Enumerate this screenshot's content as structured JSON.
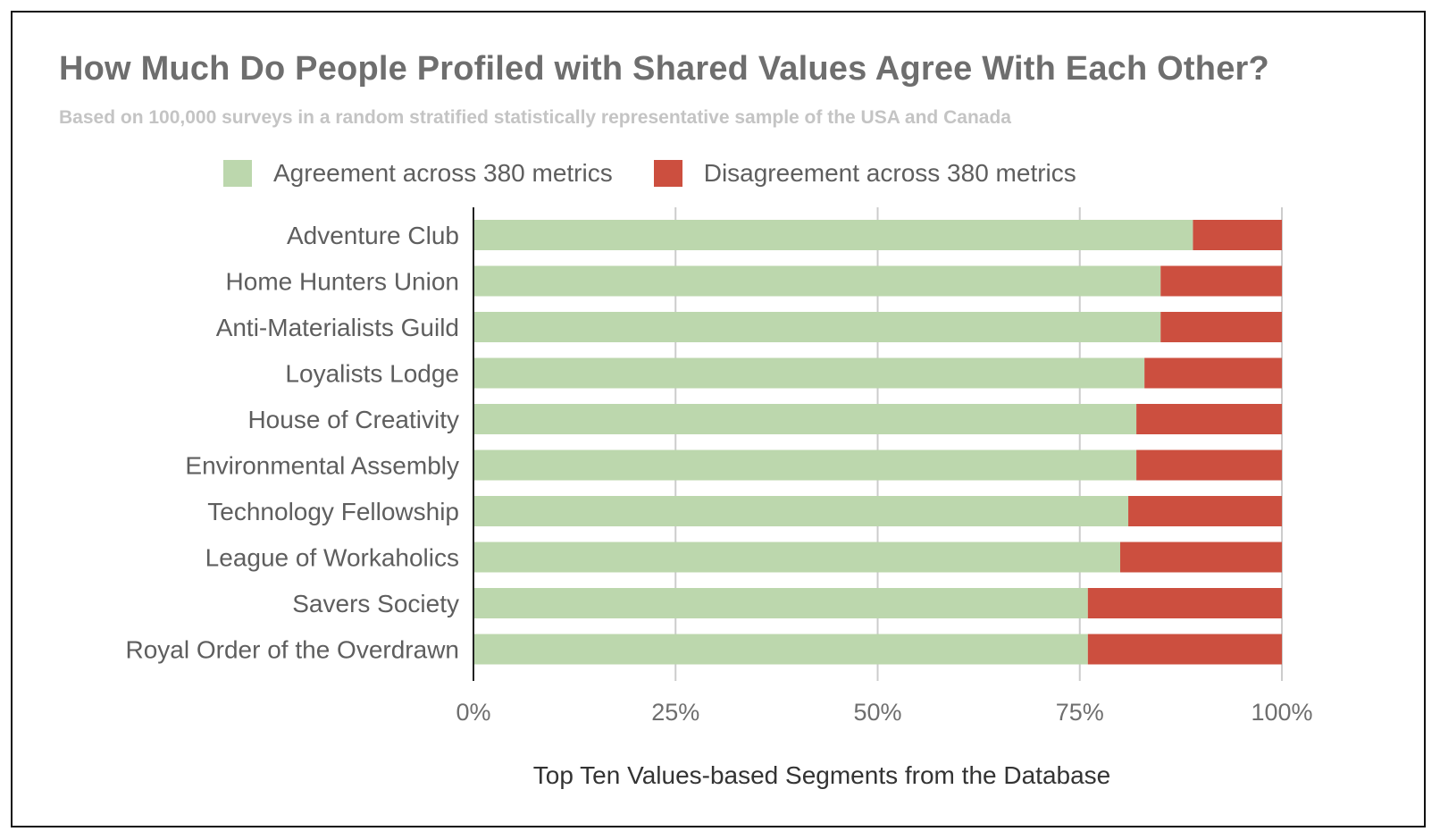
{
  "chart_data": {
    "type": "bar",
    "orientation": "horizontal",
    "stacked": true,
    "title": "How Much Do People Profiled with Shared Values Agree With Each Other?",
    "subtitle": "Based on 100,000 surveys in a random stratified statistically representative sample of the USA and Canada",
    "xlabel": "Top Ten Values-based Segments from the Database",
    "ylabel": "",
    "xlim": [
      0,
      100
    ],
    "x_ticks": [
      "0%",
      "25%",
      "50%",
      "75%",
      "100%"
    ],
    "x_tick_values": [
      0,
      25,
      50,
      75,
      100
    ],
    "grid": true,
    "legend_position": "top",
    "categories": [
      "Adventure Club",
      "Home Hunters Union",
      "Anti-Materialists Guild",
      "Loyalists Lodge",
      "House of Creativity",
      "Environmental Assembly",
      "Technology Fellowship",
      "League of Workaholics",
      "Savers Society",
      "Royal Order of the Overdrawn"
    ],
    "series": [
      {
        "name": "Agreement across 380 metrics",
        "color": "#bcd7ad",
        "values": [
          89,
          85,
          85,
          83,
          82,
          82,
          81,
          80,
          76,
          76
        ]
      },
      {
        "name": "Disagreement across 380 metrics",
        "color": "#cc4f3f",
        "values": [
          11,
          15,
          15,
          17,
          18,
          18,
          19,
          20,
          24,
          24
        ]
      }
    ]
  }
}
